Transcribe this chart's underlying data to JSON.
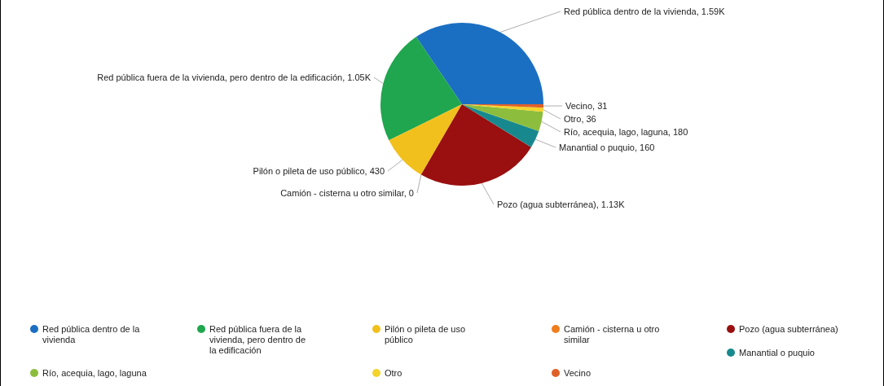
{
  "chart_data": {
    "type": "pie",
    "categories": [
      "Red pública dentro de la vivienda",
      "Red pública fuera de la vivienda, pero dentro de la edificación",
      "Pilón o pileta de uso público",
      "Camión - cisterna u otro similar",
      "Pozo (agua subterránea)",
      "Manantial o puquio",
      "Río, acequia, lago, laguna",
      "Otro",
      "Vecino"
    ],
    "values": [
      1590,
      1050,
      430,
      0,
      1130,
      160,
      180,
      36,
      31
    ],
    "value_labels": [
      "Red pública dentro de la vivienda, 1.59K",
      "Red pública fuera de la vivienda, pero dentro de la edificación, 1.05K",
      "Pilón o pileta de uso público, 430",
      "Camión - cisterna u otro similar, 0",
      "Pozo (agua subterránea), 1.13K",
      "Manantial o puquio, 160",
      "Río, acequia, lago, laguna, 180",
      "Otro, 36",
      "Vecino, 31"
    ],
    "colors": [
      "#1b6fc2",
      "#1fa64e",
      "#f2c01c",
      "#f07d1c",
      "#9a0f0f",
      "#17898e",
      "#8dbd3c",
      "#f4d42a",
      "#e0602a"
    ],
    "legend": "bottom"
  }
}
